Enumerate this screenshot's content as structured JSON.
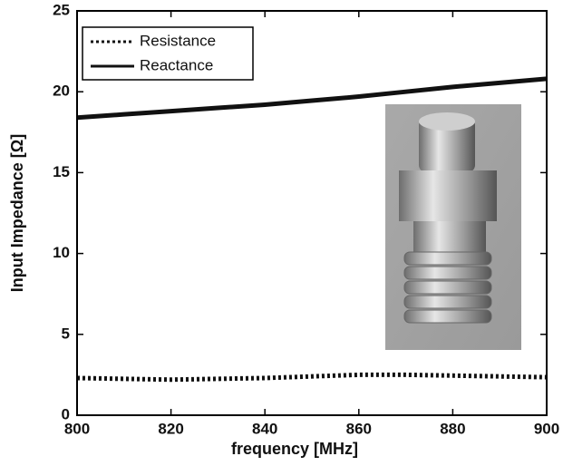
{
  "chart_data": {
    "type": "line",
    "xlabel": "frequency [MHz]",
    "ylabel": "Input Impedance [Ω]",
    "x": [
      800,
      810,
      820,
      830,
      840,
      850,
      860,
      870,
      880,
      890,
      900
    ],
    "series": [
      {
        "name": "Resistance",
        "color": "#111111",
        "linestyle": "dotted",
        "values": [
          2.3,
          2.25,
          2.2,
          2.25,
          2.3,
          2.4,
          2.5,
          2.5,
          2.45,
          2.4,
          2.35
        ]
      },
      {
        "name": "Reactance",
        "color": "#111111",
        "linestyle": "solid",
        "values": [
          18.4,
          18.6,
          18.8,
          19.0,
          19.2,
          19.45,
          19.7,
          20.0,
          20.3,
          20.55,
          20.8
        ]
      }
    ],
    "xlim": [
      800,
      900
    ],
    "xticks": [
      800,
      820,
      840,
      860,
      880,
      900
    ],
    "ylim": [
      0,
      25
    ],
    "yticks": [
      0,
      5,
      10,
      15,
      20,
      25
    ],
    "legend": "upper left"
  }
}
